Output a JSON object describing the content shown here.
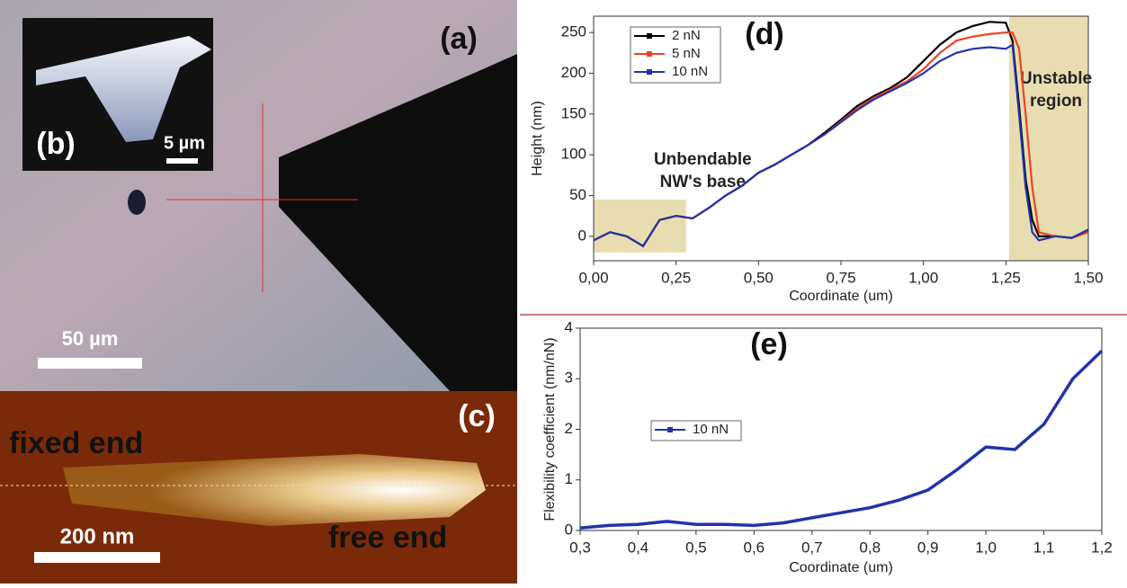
{
  "panels": {
    "a": {
      "label": "(a)",
      "scale_bar": "50 µm"
    },
    "b": {
      "label": "(b)",
      "scale_bar": "5 µm"
    },
    "c": {
      "label": "(c)",
      "fixed_end": "fixed end",
      "free_end": "free end",
      "scale_bar": "200 nm"
    }
  },
  "chart_data": [
    {
      "type": "line",
      "panel_label": "(d)",
      "xlabel": "Coordinate (um)",
      "ylabel": "Height (nm)",
      "x": [
        0,
        0.05,
        0.1,
        0.15,
        0.2,
        0.25,
        0.3,
        0.35,
        0.4,
        0.45,
        0.5,
        0.55,
        0.6,
        0.65,
        0.7,
        0.75,
        0.8,
        0.85,
        0.9,
        0.95,
        1.0,
        1.05,
        1.1,
        1.15,
        1.2,
        1.25,
        1.27,
        1.29,
        1.31,
        1.33,
        1.35,
        1.4,
        1.45,
        1.5
      ],
      "series": [
        {
          "name": "2 nN",
          "color": "#000000",
          "values": [
            -5,
            5,
            0,
            -12,
            20,
            25,
            22,
            35,
            50,
            62,
            78,
            88,
            100,
            112,
            127,
            143,
            160,
            172,
            182,
            195,
            215,
            235,
            250,
            258,
            263,
            262,
            240,
            160,
            70,
            20,
            0,
            0,
            -2,
            8
          ]
        },
        {
          "name": "5 nN",
          "color": "#ee4422",
          "values": [
            -5,
            5,
            0,
            -12,
            20,
            25,
            22,
            35,
            50,
            62,
            78,
            88,
            100,
            112,
            125,
            141,
            157,
            170,
            180,
            190,
            205,
            225,
            240,
            245,
            248,
            250,
            250,
            230,
            150,
            60,
            5,
            0,
            -2,
            5
          ]
        },
        {
          "name": "10 nN",
          "color": "#2233aa",
          "values": [
            -5,
            5,
            0,
            -12,
            20,
            25,
            22,
            35,
            50,
            62,
            78,
            88,
            100,
            112,
            125,
            140,
            155,
            168,
            178,
            188,
            200,
            215,
            225,
            230,
            232,
            230,
            235,
            150,
            60,
            5,
            -5,
            0,
            -2,
            8
          ]
        }
      ],
      "xlim": [
        0,
        1.5
      ],
      "ylim": [
        -30,
        270
      ],
      "xticks": [
        {
          "value": 0,
          "label": "0,00"
        },
        {
          "value": 0.25,
          "label": "0,25"
        },
        {
          "value": 0.5,
          "label": "0,50"
        },
        {
          "value": 0.75,
          "label": "0,75"
        },
        {
          "value": 1,
          "label": "1,00"
        },
        {
          "value": 1.25,
          "label": "1,25"
        },
        {
          "value": 1.5,
          "label": "1,50"
        }
      ],
      "yticks": [
        0,
        50,
        100,
        150,
        200,
        250
      ],
      "legend": "upper left",
      "regions": [
        {
          "x": [
            0,
            0.28
          ],
          "y": [
            -20,
            45
          ],
          "color": "#e8ddb0",
          "label_lines": [
            "Unbendable",
            "NW's base"
          ]
        },
        {
          "x": [
            1.26,
            1.5
          ],
          "y": [
            -30,
            270
          ],
          "color": "#e8ddb0",
          "label_lines": [
            "Unstable",
            "region"
          ]
        }
      ]
    },
    {
      "type": "line",
      "panel_label": "(e)",
      "xlabel": "Coordinate (um)",
      "ylabel": "Flexibility coefficient (nm/nN)",
      "x": [
        0.3,
        0.35,
        0.4,
        0.45,
        0.5,
        0.55,
        0.6,
        0.65,
        0.7,
        0.75,
        0.8,
        0.85,
        0.9,
        0.95,
        1.0,
        1.05,
        1.1,
        1.15,
        1.2
      ],
      "series": [
        {
          "name": "10 nN",
          "color": "#2233aa",
          "values": [
            0.05,
            0.1,
            0.12,
            0.18,
            0.12,
            0.12,
            0.1,
            0.15,
            0.25,
            0.35,
            0.45,
            0.6,
            0.8,
            1.2,
            1.65,
            1.6,
            2.1,
            3.0,
            3.55
          ]
        }
      ],
      "xlim": [
        0.3,
        1.2
      ],
      "ylim": [
        0,
        4
      ],
      "xticks": [
        {
          "value": 0.3,
          "label": "0,3"
        },
        {
          "value": 0.4,
          "label": "0,4"
        },
        {
          "value": 0.5,
          "label": "0,5"
        },
        {
          "value": 0.6,
          "label": "0,6"
        },
        {
          "value": 0.7,
          "label": "0,7"
        },
        {
          "value": 0.8,
          "label": "0,8"
        },
        {
          "value": 0.9,
          "label": "0,9"
        },
        {
          "value": 1,
          "label": "1,0"
        },
        {
          "value": 1.1,
          "label": "1,1"
        },
        {
          "value": 1.2,
          "label": "1,2"
        }
      ],
      "yticks": [
        0,
        1,
        2,
        3,
        4
      ],
      "legend": "center left"
    }
  ]
}
